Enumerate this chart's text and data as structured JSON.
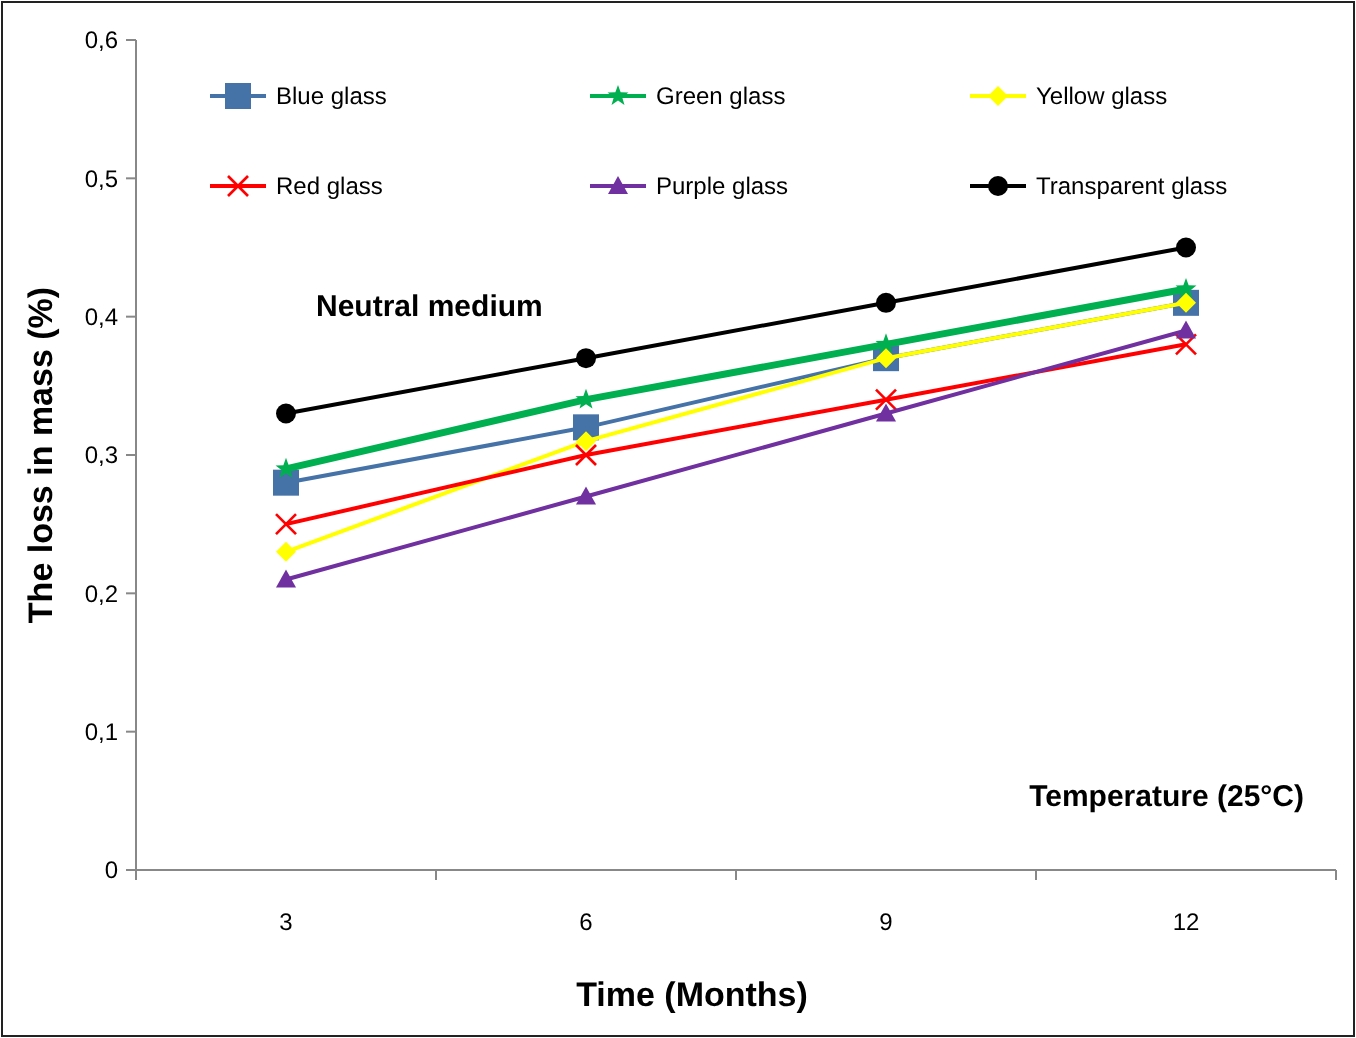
{
  "chart_data": {
    "type": "line",
    "xlabel": "Time (Months)",
    "ylabel": "The loss in mass (%)",
    "categories": [
      "3",
      "6",
      "9",
      "12"
    ],
    "ylim": [
      0,
      0.6
    ],
    "yticks": [
      0,
      {
        "value": 0.1,
        "label": "0,1"
      },
      {
        "value": 0.2,
        "label": "0,2"
      },
      {
        "value": 0.3,
        "label": "0,3"
      },
      {
        "value": 0.4,
        "label": "0,4"
      },
      {
        "value": 0.5,
        "label": "0,5"
      },
      {
        "value": 0.6,
        "label": "0,6"
      }
    ],
    "grid": false,
    "legend": "top left",
    "annotations": [
      "Neutral medium",
      "Temperature (25°C)"
    ],
    "series": [
      {
        "name": "Blue glass",
        "color": "#4572a7",
        "marker": "square",
        "values": [
          0.28,
          0.32,
          0.37,
          0.41
        ]
      },
      {
        "name": "Green glass",
        "color": "#00b050",
        "marker": "star",
        "values": [
          0.29,
          0.34,
          0.38,
          0.42
        ]
      },
      {
        "name": "Yellow glass",
        "color": "#ffff00",
        "marker": "diamond",
        "values": [
          0.23,
          0.31,
          0.37,
          0.41
        ]
      },
      {
        "name": "Red glass",
        "color": "#ff0000",
        "marker": "cross",
        "values": [
          0.25,
          0.3,
          0.34,
          0.38
        ]
      },
      {
        "name": "Purple glass",
        "color": "#7030a0",
        "marker": "triangle",
        "values": [
          0.21,
          0.27,
          0.33,
          0.39
        ]
      },
      {
        "name": "Transparent glass",
        "color": "#000000",
        "marker": "circle",
        "values": [
          0.33,
          0.37,
          0.41,
          0.45
        ]
      }
    ]
  }
}
